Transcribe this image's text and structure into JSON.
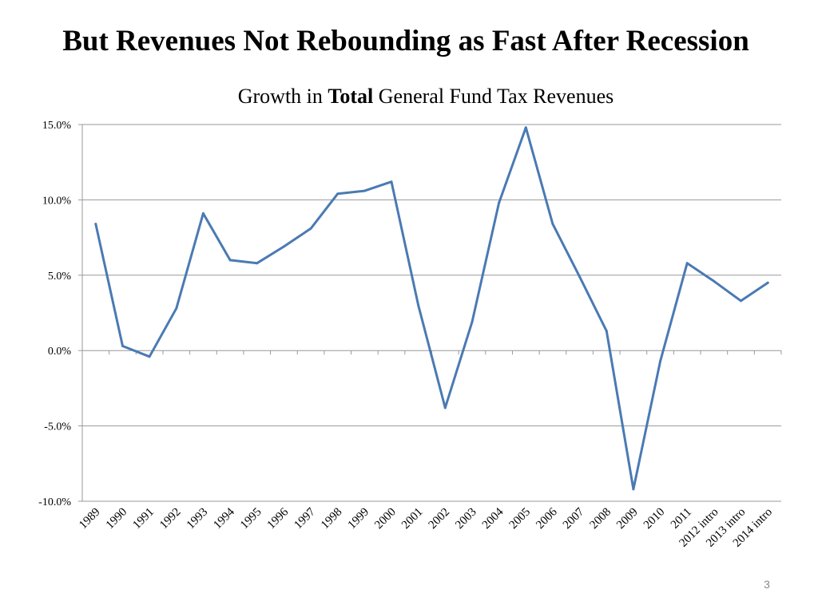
{
  "slide": {
    "title": "But Revenues Not Rebounding as Fast After Recession",
    "page_number": "3"
  },
  "chart_title": {
    "prefix": "Growth in ",
    "emphasis": "Total",
    "suffix": " General Fund Tax Revenues"
  },
  "colors": {
    "line": "#4a7ab3",
    "grid": "#999999",
    "axis": "#999999"
  },
  "chart_data": {
    "type": "line",
    "title": "Growth in Total General Fund Tax Revenues",
    "xlabel": "",
    "ylabel": "",
    "ylim": [
      -10,
      15
    ],
    "y_ticks": [
      15,
      10,
      5,
      0,
      -5,
      -10
    ],
    "y_tick_labels": [
      "15.0%",
      "10.0%",
      "5.0%",
      "0.0%",
      "-5.0%",
      "-10.0%"
    ],
    "grid": true,
    "categories": [
      "1989",
      "1990",
      "1991",
      "1992",
      "1993",
      "1994",
      "1995",
      "1996",
      "1997",
      "1998",
      "1999",
      "2000",
      "2001",
      "2002",
      "2003",
      "2004",
      "2005",
      "2006",
      "2007",
      "2008",
      "2009",
      "2010",
      "2011",
      "2012 intro",
      "2013 intro",
      "2014 intro"
    ],
    "series": [
      {
        "name": "Growth in Total General Fund Tax Revenues",
        "values": [
          8.4,
          0.3,
          -0.4,
          2.8,
          9.1,
          6.0,
          5.8,
          6.9,
          8.1,
          10.4,
          10.6,
          11.2,
          3.0,
          -3.8,
          1.9,
          9.8,
          14.8,
          8.4,
          4.9,
          1.3,
          -9.2,
          -0.7,
          5.8,
          4.6,
          3.3,
          4.5
        ]
      }
    ]
  }
}
